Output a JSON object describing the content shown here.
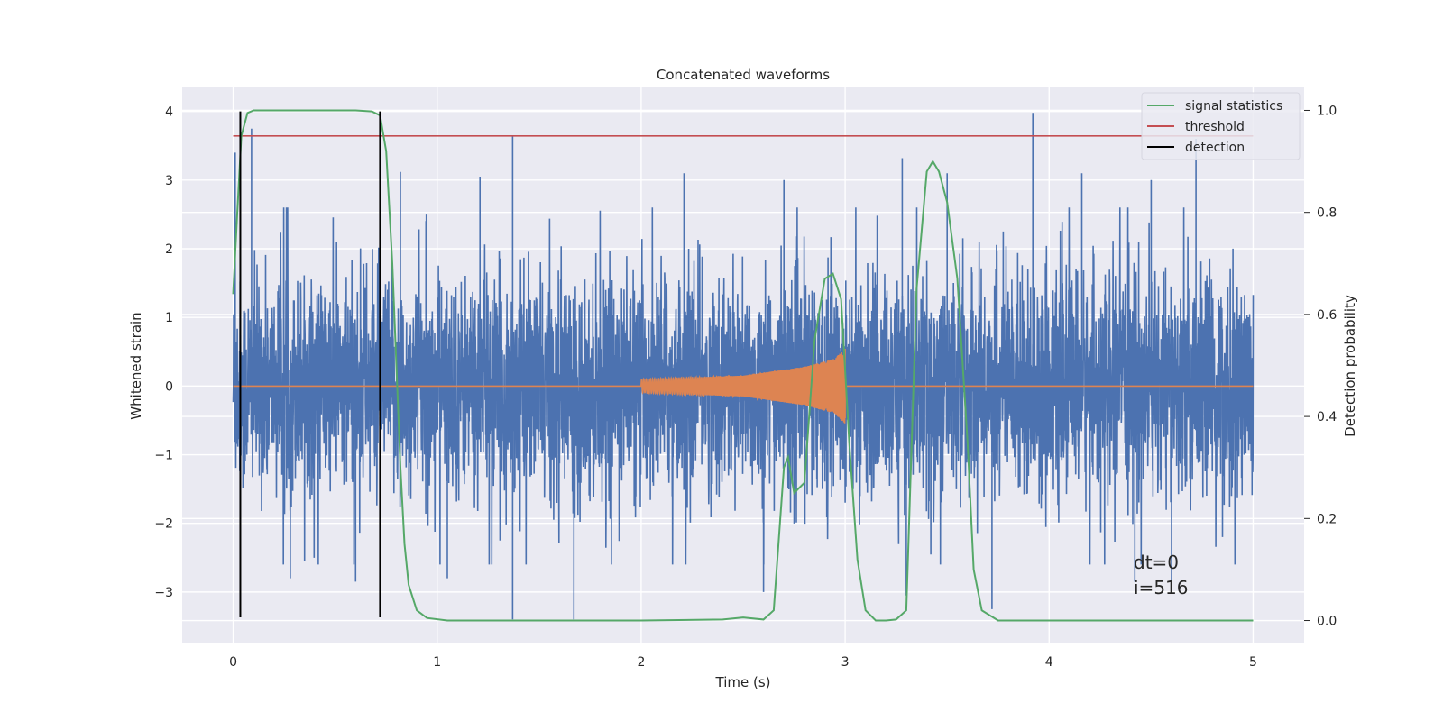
{
  "chart_data": {
    "type": "line",
    "title": "Concatenated waveforms",
    "xlabel": "Time (s)",
    "ylabel": "Whitened strain",
    "y2label": "Detection probability",
    "xlim": [
      -0.25,
      5.25
    ],
    "ylim": [
      -3.75,
      4.35
    ],
    "y2lim": [
      -0.045,
      1.045
    ],
    "x_ticks": [
      0,
      1,
      2,
      3,
      4,
      5
    ],
    "y_ticks": [
      -3,
      -2,
      -1,
      0,
      1,
      2,
      3,
      4
    ],
    "y2_ticks": [
      0.0,
      0.2,
      0.4,
      0.6,
      0.8,
      1.0
    ],
    "grid": true,
    "legend_position": "top-right",
    "colors": {
      "strain": "#4c72b0",
      "template": "#dd8452",
      "signal_statistics": "#55a868",
      "threshold": "#c44e52",
      "detection": "#000000",
      "background": "#eaeaf2",
      "grid": "#ffffff"
    },
    "series": [
      {
        "name": "",
        "role": "strain",
        "axis": "left",
        "x_range": [
          0,
          5
        ],
        "note_values": "dense noise, abs amplitude mostly within 1.0, spikes to about 2.5",
        "peaks": [
          [
            0.01,
            3.4
          ],
          [
            0.09,
            3.75
          ],
          [
            1.37,
            3.65
          ],
          [
            1.37,
            -3.4
          ],
          [
            1.67,
            -3.4
          ],
          [
            3.92,
            3.98
          ],
          [
            4.72,
            3.6
          ],
          [
            4.16,
            3.1
          ],
          [
            1.21,
            3.05
          ],
          [
            0.82,
            3.12
          ],
          [
            3.28,
            3.32
          ],
          [
            3.5,
            3.1
          ],
          [
            2.21,
            3.1
          ],
          [
            2.7,
            3.0
          ],
          [
            4.5,
            3.0
          ],
          [
            0.28,
            -2.8
          ],
          [
            0.6,
            -2.85
          ],
          [
            1.05,
            -2.8
          ],
          [
            2.6,
            -3.0
          ],
          [
            3.3,
            -3.05
          ],
          [
            3.72,
            -3.25
          ],
          [
            4.42,
            -2.85
          ],
          [
            4.6,
            -2.9
          ],
          [
            4.85,
            -2.2
          ]
        ]
      },
      {
        "name": "",
        "role": "template",
        "axis": "left",
        "x": [
          0,
          2.0,
          2.5,
          2.8,
          2.95,
          3.0,
          5
        ],
        "envelope": [
          0,
          0.1,
          0.15,
          0.28,
          0.4,
          0.55,
          0
        ]
      },
      {
        "name": "signal statistics",
        "role": "signal_statistics",
        "axis": "right",
        "x": [
          0.0,
          0.02,
          0.04,
          0.07,
          0.1,
          0.2,
          0.4,
          0.6,
          0.68,
          0.72,
          0.75,
          0.78,
          0.8,
          0.82,
          0.84,
          0.86,
          0.9,
          0.95,
          1.05,
          2.0,
          2.4,
          2.5,
          2.6,
          2.65,
          2.7,
          2.72,
          2.75,
          2.8,
          2.85,
          2.9,
          2.94,
          2.98,
          3.02,
          3.06,
          3.1,
          3.15,
          3.2,
          3.25,
          3.3,
          3.35,
          3.4,
          3.43,
          3.46,
          3.5,
          3.55,
          3.6,
          3.63,
          3.67,
          3.75,
          4.0,
          4.5,
          5.0
        ],
        "values": [
          0.64,
          0.8,
          0.95,
          0.995,
          1.0,
          1.0,
          1.0,
          1.0,
          0.998,
          0.99,
          0.92,
          0.7,
          0.5,
          0.3,
          0.15,
          0.07,
          0.02,
          0.005,
          0.0,
          0.0,
          0.002,
          0.006,
          0.002,
          0.02,
          0.3,
          0.32,
          0.25,
          0.27,
          0.55,
          0.67,
          0.68,
          0.63,
          0.35,
          0.12,
          0.02,
          0.0,
          0.0,
          0.002,
          0.02,
          0.65,
          0.88,
          0.9,
          0.88,
          0.82,
          0.67,
          0.35,
          0.1,
          0.02,
          0.0,
          0.0,
          0.0,
          0.0
        ]
      },
      {
        "name": "threshold",
        "role": "threshold",
        "axis": "right",
        "x": [
          0,
          5
        ],
        "values": [
          0.95,
          0.95
        ]
      },
      {
        "name": "detection",
        "role": "detection",
        "axis": "left",
        "x": [
          0.035,
          0.72
        ],
        "y_span": [
          -3.37,
          4.0
        ]
      }
    ],
    "annotations": [
      "dt=0",
      "i=516"
    ]
  }
}
